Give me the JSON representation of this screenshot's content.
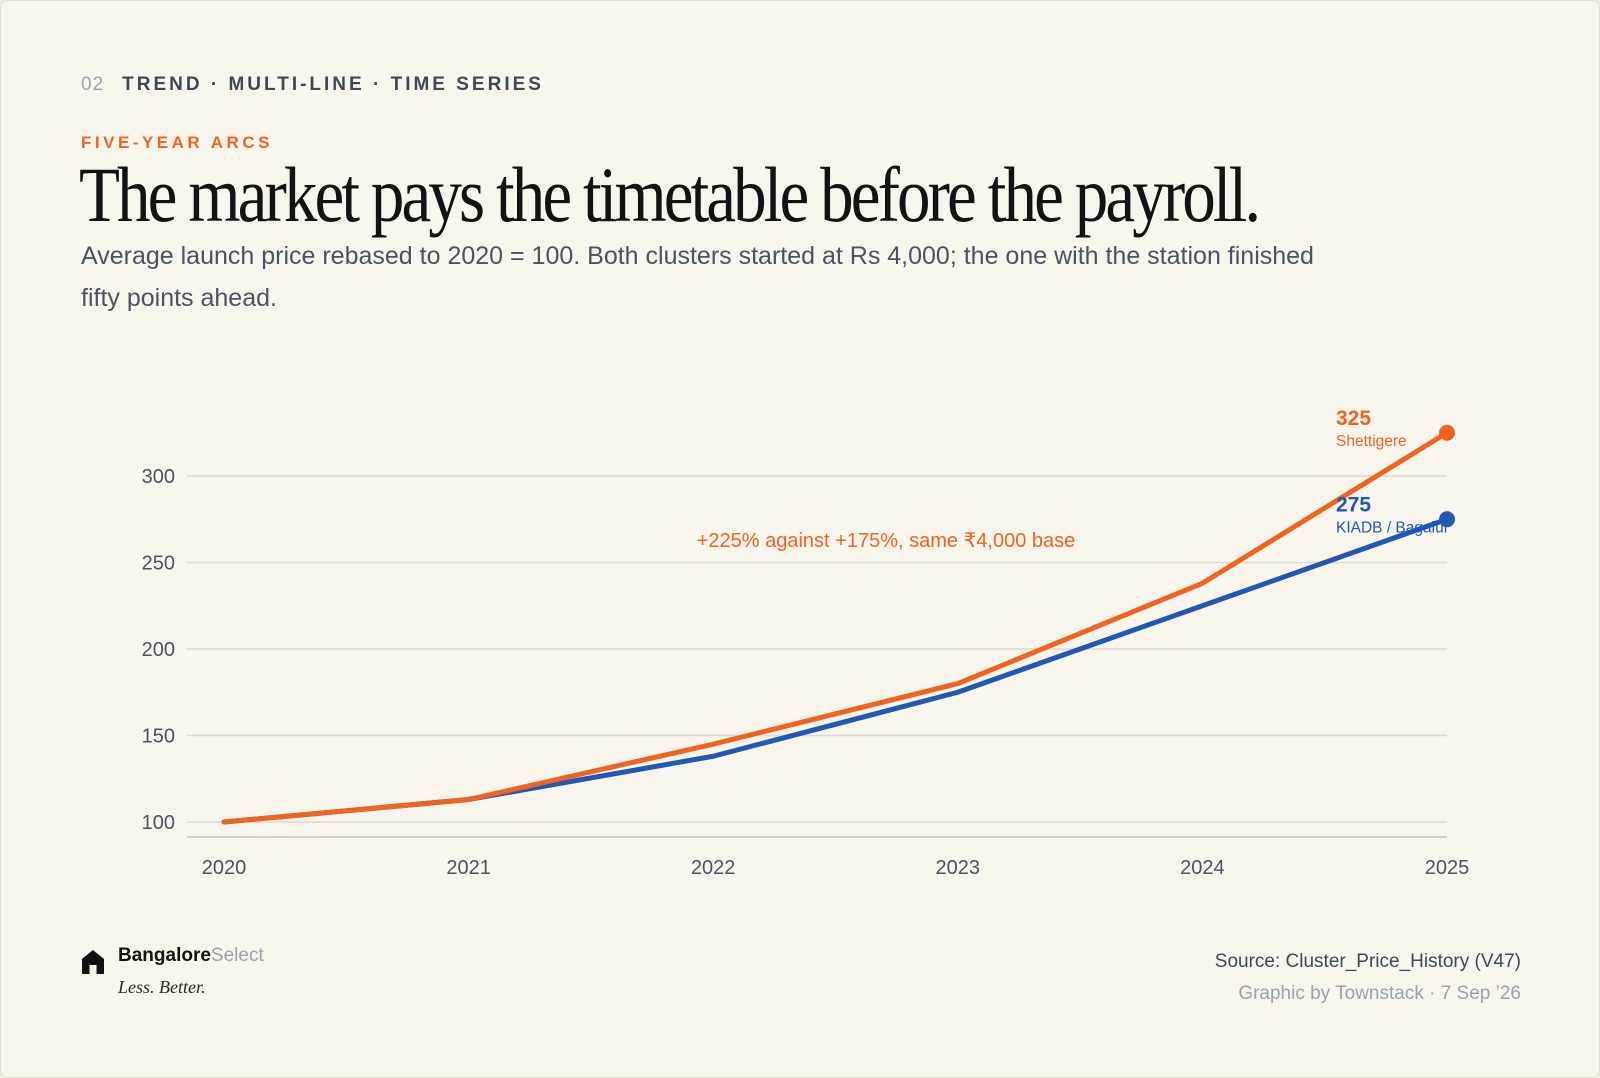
{
  "header": {
    "number": "02",
    "eyebrow": "TREND · MULTI-LINE · TIME SERIES",
    "kicker": "FIVE-YEAR ARCS",
    "title": "The market pays the timetable before the payroll.",
    "subtitle": "Average launch price rebased to 2020 = 100. Both clusters started at Rs 4,000; the one with the station finished fifty points ahead."
  },
  "colors": {
    "accent": "#f26322",
    "series_blue": "#2257b3",
    "grid": "#dedad0"
  },
  "chart_data": {
    "type": "line",
    "x": [
      2020,
      2021,
      2022,
      2023,
      2024,
      2025
    ],
    "xticks": [
      "2020",
      "2021",
      "2022",
      "2023",
      "2024",
      "2025"
    ],
    "yticks": [
      "100",
      "150",
      "200",
      "250",
      "300"
    ],
    "ylim": [
      91,
      335
    ],
    "grid": true,
    "series": [
      {
        "name": "Shettigere",
        "color": "#f26322",
        "values": [
          100,
          113,
          145,
          180,
          238,
          325
        ],
        "end_label": "325"
      },
      {
        "name": "KIADB / Bagalur",
        "color": "#2257b3",
        "values": [
          100,
          113,
          138,
          175,
          225,
          275
        ],
        "end_label": "275"
      }
    ],
    "annotation": "+225% against +175%, same ₹4,000 base"
  },
  "footer": {
    "brand_primary": "Bangalore",
    "brand_secondary": "Select",
    "tagline": "Less. Better.",
    "source": "Source: Cluster_Price_History (V47)",
    "credit": "Graphic by Townstack · 7 Sep ’26"
  }
}
